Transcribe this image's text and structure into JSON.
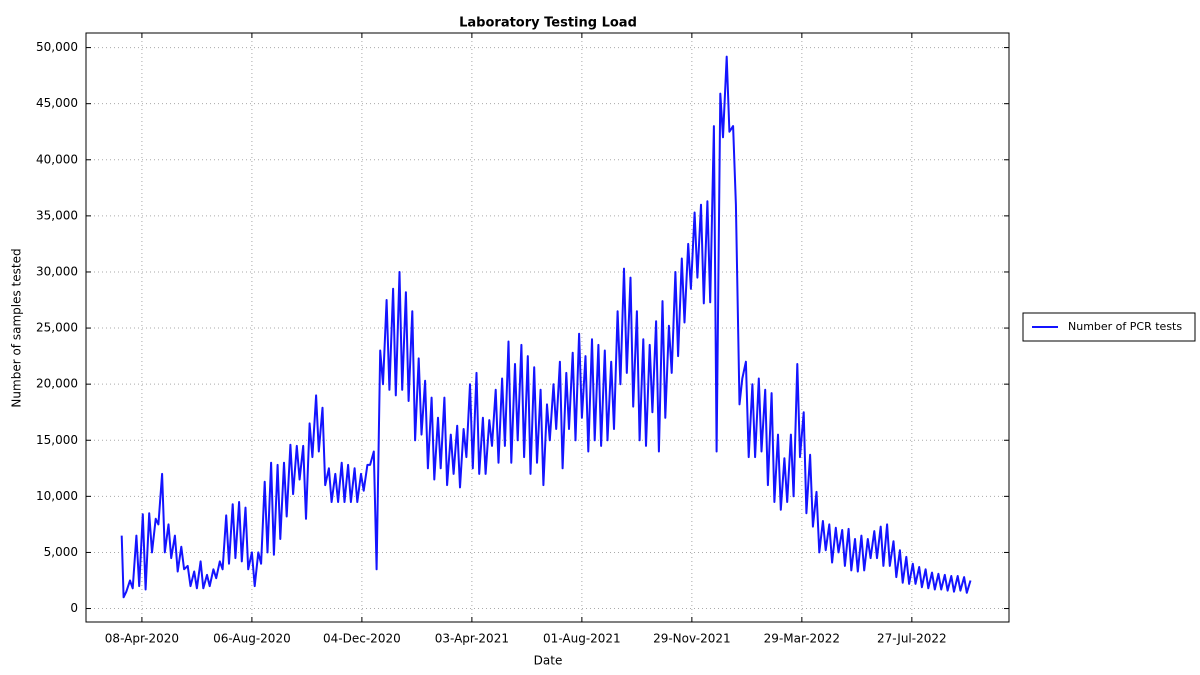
{
  "chart_data": {
    "type": "line",
    "title": "Laboratory Testing Load",
    "xlabel": "Date",
    "ylabel": "Number of samples tested",
    "xlim": [
      "2020-02-07",
      "2022-11-10"
    ],
    "ylim": [
      -1200,
      51300
    ],
    "xticks": [
      {
        "value": "2020-04-08",
        "label": "08-Apr-2020"
      },
      {
        "value": "2020-08-06",
        "label": "06-Aug-2020"
      },
      {
        "value": "2020-12-04",
        "label": "04-Dec-2020"
      },
      {
        "value": "2021-04-03",
        "label": "03-Apr-2021"
      },
      {
        "value": "2021-08-01",
        "label": "01-Aug-2021"
      },
      {
        "value": "2021-11-29",
        "label": "29-Nov-2021"
      },
      {
        "value": "2022-03-29",
        "label": "29-Mar-2022"
      },
      {
        "value": "2022-07-27",
        "label": "27-Jul-2022"
      }
    ],
    "yticks": [
      0,
      {
        "value": 5000,
        "label": "5,000"
      },
      {
        "value": 10000,
        "label": "10,000"
      },
      {
        "value": 15000,
        "label": "15,000"
      },
      {
        "value": 20000,
        "label": "20,000"
      },
      {
        "value": 25000,
        "label": "25,000"
      },
      {
        "value": 30000,
        "label": "30,000"
      },
      {
        "value": 35000,
        "label": "35,000"
      },
      {
        "value": 40000,
        "label": "40,000"
      },
      {
        "value": 45000,
        "label": "45,000"
      },
      {
        "value": 50000,
        "label": "50,000"
      }
    ],
    "grid": true,
    "legend": "right",
    "x": [
      "2020-03-17",
      "2020-03-19",
      "2020-03-22",
      "2020-03-26",
      "2020-03-29",
      "2020-04-02",
      "2020-04-05",
      "2020-04-09",
      "2020-04-12",
      "2020-04-16",
      "2020-04-19",
      "2020-04-23",
      "2020-04-26",
      "2020-04-30",
      "2020-05-03",
      "2020-05-07",
      "2020-05-10",
      "2020-05-14",
      "2020-05-17",
      "2020-05-21",
      "2020-05-24",
      "2020-05-28",
      "2020-05-31",
      "2020-06-04",
      "2020-06-07",
      "2020-06-11",
      "2020-06-14",
      "2020-06-18",
      "2020-06-21",
      "2020-06-25",
      "2020-06-28",
      "2020-07-02",
      "2020-07-05",
      "2020-07-09",
      "2020-07-12",
      "2020-07-16",
      "2020-07-19",
      "2020-07-23",
      "2020-07-26",
      "2020-07-30",
      "2020-08-02",
      "2020-08-06",
      "2020-08-09",
      "2020-08-13",
      "2020-08-16",
      "2020-08-20",
      "2020-08-23",
      "2020-08-27",
      "2020-08-30",
      "2020-09-03",
      "2020-09-06",
      "2020-09-10",
      "2020-09-13",
      "2020-09-17",
      "2020-09-20",
      "2020-09-24",
      "2020-09-27",
      "2020-10-01",
      "2020-10-04",
      "2020-10-08",
      "2020-10-11",
      "2020-10-15",
      "2020-10-18",
      "2020-10-22",
      "2020-10-25",
      "2020-10-29",
      "2020-11-01",
      "2020-11-05",
      "2020-11-08",
      "2020-11-12",
      "2020-11-15",
      "2020-11-19",
      "2020-11-22",
      "2020-11-26",
      "2020-11-29",
      "2020-12-03",
      "2020-12-06",
      "2020-12-10",
      "2020-12-13",
      "2020-12-17",
      "2020-12-20",
      "2020-12-24",
      "2020-12-27",
      "2020-12-31",
      "2021-01-03",
      "2021-01-07",
      "2021-01-10",
      "2021-01-14",
      "2021-01-17",
      "2021-01-21",
      "2021-01-24",
      "2021-01-28",
      "2021-01-31",
      "2021-02-04",
      "2021-02-07",
      "2021-02-11",
      "2021-02-14",
      "2021-02-18",
      "2021-02-21",
      "2021-02-25",
      "2021-02-28",
      "2021-03-04",
      "2021-03-07",
      "2021-03-11",
      "2021-03-14",
      "2021-03-18",
      "2021-03-21",
      "2021-03-25",
      "2021-03-28",
      "2021-04-01",
      "2021-04-04",
      "2021-04-08",
      "2021-04-11",
      "2021-04-15",
      "2021-04-18",
      "2021-04-22",
      "2021-04-25",
      "2021-04-29",
      "2021-05-02",
      "2021-05-06",
      "2021-05-09",
      "2021-05-13",
      "2021-05-16",
      "2021-05-20",
      "2021-05-23",
      "2021-05-27",
      "2021-05-30",
      "2021-06-03",
      "2021-06-06",
      "2021-06-10",
      "2021-06-13",
      "2021-06-17",
      "2021-06-20",
      "2021-06-24",
      "2021-06-27",
      "2021-07-01",
      "2021-07-04",
      "2021-07-08",
      "2021-07-11",
      "2021-07-15",
      "2021-07-18",
      "2021-07-22",
      "2021-07-25",
      "2021-07-29",
      "2021-08-01",
      "2021-08-05",
      "2021-08-08",
      "2021-08-12",
      "2021-08-15",
      "2021-08-19",
      "2021-08-22",
      "2021-08-26",
      "2021-08-29",
      "2021-09-02",
      "2021-09-05",
      "2021-09-09",
      "2021-09-12",
      "2021-09-16",
      "2021-09-19",
      "2021-09-23",
      "2021-09-26",
      "2021-09-30",
      "2021-10-03",
      "2021-10-07",
      "2021-10-10",
      "2021-10-14",
      "2021-10-17",
      "2021-10-21",
      "2021-10-24",
      "2021-10-28",
      "2021-10-31",
      "2021-11-04",
      "2021-11-07",
      "2021-11-11",
      "2021-11-14",
      "2021-11-18",
      "2021-11-21",
      "2021-11-25",
      "2021-11-28",
      "2021-12-02",
      "2021-12-05",
      "2021-12-09",
      "2021-12-12",
      "2021-12-16",
      "2021-12-19",
      "2021-12-23",
      "2021-12-26",
      "2021-12-30",
      "2022-01-02",
      "2022-01-06",
      "2022-01-09",
      "2022-01-13",
      "2022-01-16",
      "2022-01-20",
      "2022-01-23",
      "2022-01-27",
      "2022-01-30",
      "2022-02-03",
      "2022-02-06",
      "2022-02-10",
      "2022-02-13",
      "2022-02-17",
      "2022-02-20",
      "2022-02-24",
      "2022-02-27",
      "2022-03-03",
      "2022-03-06",
      "2022-03-10",
      "2022-03-13",
      "2022-03-17",
      "2022-03-20",
      "2022-03-24",
      "2022-03-27",
      "2022-03-31",
      "2022-04-03",
      "2022-04-07",
      "2022-04-10",
      "2022-04-14",
      "2022-04-17",
      "2022-04-21",
      "2022-04-24",
      "2022-04-28",
      "2022-05-01",
      "2022-05-05",
      "2022-05-08",
      "2022-05-12",
      "2022-05-15",
      "2022-05-19",
      "2022-05-22",
      "2022-05-26",
      "2022-05-29",
      "2022-06-02",
      "2022-06-05",
      "2022-06-09",
      "2022-06-12",
      "2022-06-16",
      "2022-06-19",
      "2022-06-23",
      "2022-06-26",
      "2022-06-30",
      "2022-07-03",
      "2022-07-07",
      "2022-07-10",
      "2022-07-14",
      "2022-07-17",
      "2022-07-21",
      "2022-07-24",
      "2022-07-28",
      "2022-07-31",
      "2022-08-04",
      "2022-08-07",
      "2022-08-11",
      "2022-08-14",
      "2022-08-18",
      "2022-08-21",
      "2022-08-25",
      "2022-08-28",
      "2022-09-01",
      "2022-09-04",
      "2022-09-08",
      "2022-09-11",
      "2022-09-15",
      "2022-09-18",
      "2022-09-22",
      "2022-09-25",
      "2022-09-29"
    ],
    "series": [
      {
        "name": "Number of PCR tests",
        "color": "#1414ff",
        "values": [
          6500,
          1000,
          1500,
          2500,
          1800,
          6500,
          2000,
          8400,
          1700,
          8500,
          5000,
          8000,
          7500,
          12000,
          5000,
          7500,
          4500,
          6500,
          3300,
          5500,
          3500,
          3800,
          2000,
          3300,
          1800,
          4200,
          1800,
          3000,
          2000,
          3500,
          2700,
          4200,
          3500,
          8300,
          4000,
          9300,
          4500,
          9500,
          4200,
          9000,
          3500,
          5000,
          2000,
          5000,
          4000,
          11300,
          5000,
          13000,
          4800,
          12800,
          6200,
          13000,
          8200,
          14600,
          10200,
          14500,
          11500,
          14500,
          8000,
          16500,
          13500,
          19000,
          14000,
          17900,
          11000,
          12500,
          9500,
          12000,
          9500,
          13000,
          9500,
          12800,
          9500,
          12500,
          9500,
          12000,
          10500,
          12800,
          12800,
          14000,
          3500,
          23000,
          20000,
          27500,
          19500,
          28500,
          19000,
          30000,
          19500,
          28200,
          18500,
          26500,
          15000,
          22300,
          15500,
          20300,
          12500,
          18800,
          11500,
          17000,
          12500,
          18800,
          11000,
          15500,
          12000,
          16300,
          10800,
          16000,
          13500,
          20000,
          12500,
          21000,
          12000,
          17000,
          12000,
          16800,
          14500,
          19500,
          13000,
          20500,
          14500,
          23800,
          13000,
          21800,
          15000,
          23500,
          13500,
          22500,
          12000,
          21500,
          13000,
          19500,
          11000,
          18200,
          15000,
          20000,
          16000,
          22000,
          12500,
          21000,
          16000,
          22800,
          15000,
          24500,
          17000,
          22500,
          14000,
          24000,
          15000,
          23500,
          14500,
          23000,
          15000,
          22000,
          16000,
          26500,
          20000,
          30300,
          21000,
          29500,
          18000,
          26500,
          15000,
          24000,
          14500,
          23500,
          17500,
          25600,
          14000,
          27400,
          17000,
          25200,
          21000,
          30000,
          22500,
          31200,
          25500,
          32500,
          28500,
          35300,
          29500,
          36000,
          27200,
          36300,
          27300,
          43000,
          14000,
          45900,
          42000,
          49200,
          42500,
          43000,
          36000,
          18200,
          20500,
          22000,
          13500,
          20000,
          13500,
          20500,
          14000,
          19500,
          11000,
          19200,
          9500,
          15500,
          8800,
          13400,
          9500,
          15500,
          10000,
          21800,
          13500,
          17500,
          8500,
          13700,
          7300,
          10400,
          5000,
          7800,
          5200,
          7500,
          4100,
          7200,
          5000,
          7000,
          3800,
          7100,
          3400,
          6200,
          3300,
          6500,
          3400,
          6200,
          4500,
          6900,
          4500,
          7300,
          3800,
          7500,
          3800,
          6000,
          2800,
          5200,
          2300,
          4600,
          2200,
          4000,
          2200,
          3700,
          1900,
          3500,
          1800,
          3200,
          1700,
          3100,
          1700,
          3000,
          1600,
          2900,
          1500,
          2900,
          1600,
          2800,
          1400,
          2500
        ]
      }
    ]
  }
}
